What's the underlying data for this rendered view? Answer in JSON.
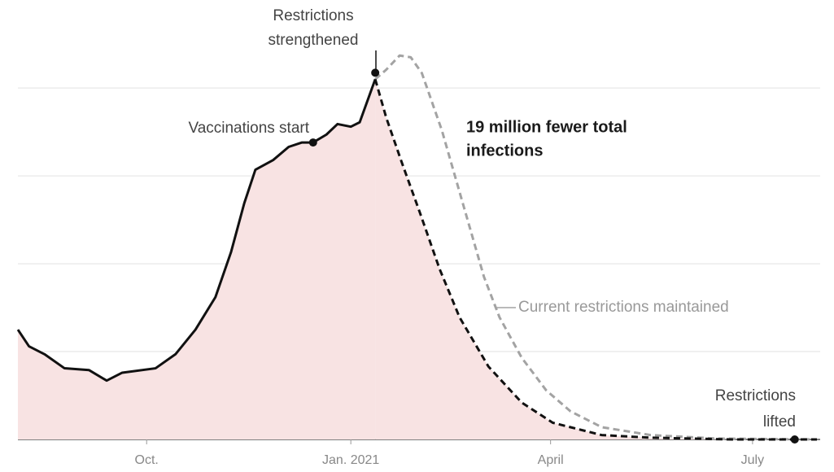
{
  "chart_data": {
    "type": "line",
    "xlim": [
      -58,
      302
    ],
    "xticks": [
      {
        "value": 0,
        "label": "Oct."
      },
      {
        "value": 92,
        "label": "Jan. 2021"
      },
      {
        "value": 182,
        "label": "April"
      },
      {
        "value": 273,
        "label": "July"
      }
    ],
    "ylim": [
      0,
      4.9
    ],
    "yticks": [
      0,
      1,
      2,
      3,
      4
    ],
    "grid": true,
    "fill_color": "#f8e3e3",
    "series": [
      {
        "color": "#111111",
        "dashed": false,
        "x": [
          -58,
          -53,
          -46,
          -37,
          -26,
          -18,
          -11,
          4,
          13,
          22,
          31,
          38,
          44,
          49,
          57,
          64,
          70,
          75,
          81,
          86,
          92,
          96,
          103
        ],
        "values": [
          1.25,
          1.06,
          0.97,
          0.81,
          0.79,
          0.67,
          0.76,
          0.81,
          0.97,
          1.25,
          1.62,
          2.13,
          2.69,
          3.07,
          3.18,
          3.33,
          3.38,
          3.38,
          3.47,
          3.59,
          3.56,
          3.61,
          4.1
        ]
      },
      {
        "color": "#111111",
        "dashed": true,
        "x": [
          103,
          108,
          115,
          123,
          132,
          141,
          154,
          169,
          183,
          205,
          227,
          264,
          292,
          302
        ],
        "values": [
          4.1,
          3.66,
          3.15,
          2.59,
          1.94,
          1.39,
          0.83,
          0.42,
          0.19,
          0.05,
          0.02,
          0,
          0,
          0
        ]
      },
      {
        "name": "Current restrictions maintained",
        "color": "#a3a3a3",
        "dashed": true,
        "x": [
          103,
          108,
          114,
          119,
          124,
          133,
          143,
          152,
          159,
          169,
          180,
          191,
          205,
          227,
          257,
          302
        ],
        "values": [
          4.1,
          4.21,
          4.37,
          4.35,
          4.17,
          3.52,
          2.64,
          1.85,
          1.39,
          0.93,
          0.56,
          0.32,
          0.14,
          0.05,
          0.01,
          0
        ]
      }
    ],
    "annotations": [
      {
        "lines": [
          "Restrictions",
          "strengthened"
        ],
        "series": 0,
        "point": 22
      },
      {
        "lines": [
          "Vaccinations start"
        ],
        "series": 0,
        "point": 17
      },
      {
        "lines": [
          "19 million fewer total",
          "infections"
        ]
      },
      {
        "lines": [
          "Restrictions",
          "lifted"
        ],
        "series": 1,
        "point": 12
      }
    ]
  }
}
